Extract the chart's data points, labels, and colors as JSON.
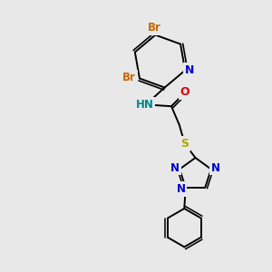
{
  "bg_color": "#e8e8e8",
  "C": "#000000",
  "N": "#0000cc",
  "O": "#dd0000",
  "S": "#aaaa00",
  "Br": "#cc6600",
  "NH_color": "#008888",
  "bond": "#000000",
  "bw": 1.4,
  "fs": 8.5
}
